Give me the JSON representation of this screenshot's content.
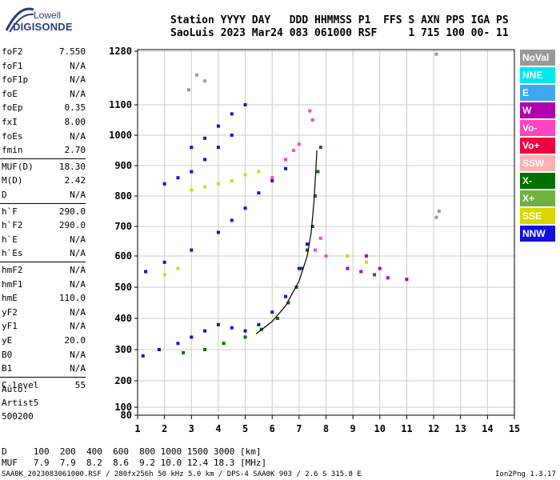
{
  "logo": {
    "line1": "Lowell",
    "line2": "DIGISONDE"
  },
  "header": {
    "line1": "Station YYYY DAY   DDD HHMMSS P1  FFS S AXN PPS IGA PS",
    "line2": "SaoLuis 2023 Mar24 083 061000 RSF     1 715 100 00- 11"
  },
  "params": [
    {
      "name": "foF2",
      "value": "7.550"
    },
    {
      "name": "foF1",
      "value": "N/A"
    },
    {
      "name": "foF1p",
      "value": "N/A"
    },
    {
      "name": "foE",
      "value": "N/A"
    },
    {
      "name": "foEp",
      "value": "0.35"
    },
    {
      "name": "fxI",
      "value": "8.00"
    },
    {
      "name": "foEs",
      "value": "N/A"
    },
    {
      "name": "fmin",
      "value": "2.70"
    },
    {
      "name": "MUF(D)",
      "value": "18.30"
    },
    {
      "name": "M(D)",
      "value": "2.42"
    },
    {
      "name": "D",
      "value": "N/A"
    },
    {
      "name": "h`F",
      "value": "290.0"
    },
    {
      "name": "h`F2",
      "value": "290.0"
    },
    {
      "name": "h`E",
      "value": "N/A"
    },
    {
      "name": "h`Es",
      "value": "N/A"
    },
    {
      "name": "hmF2",
      "value": "N/A"
    },
    {
      "name": "hmF1",
      "value": "N/A"
    },
    {
      "name": "hmE",
      "value": "110.0"
    },
    {
      "name": "yF2",
      "value": "N/A"
    },
    {
      "name": "yF1",
      "value": "N/A"
    },
    {
      "name": "yE",
      "value": "20.0"
    },
    {
      "name": "B0",
      "value": "N/A"
    },
    {
      "name": "B1",
      "value": "N/A"
    },
    {
      "name": "C-level",
      "value": "55"
    }
  ],
  "auto": {
    "line1": "Auto:",
    "line2": "Artist5",
    "line3": "500200"
  },
  "legend": [
    {
      "label": "NoVal",
      "color": "#999999"
    },
    {
      "label": "NNE",
      "color": "#00e8f0"
    },
    {
      "label": "E",
      "color": "#40a8f0"
    },
    {
      "label": "W",
      "color": "#b000b0"
    },
    {
      "label": "Vo-",
      "color": "#ff44c0"
    },
    {
      "label": "Vo+",
      "color": "#f00040"
    },
    {
      "label": "SSW",
      "color": "#ffb0b0"
    },
    {
      "label": "X-",
      "color": "#007000"
    },
    {
      "label": "X+",
      "color": "#70b040"
    },
    {
      "label": "SSE",
      "color": "#d8d800"
    },
    {
      "label": "NNW",
      "color": "#1010e0"
    }
  ],
  "footer": {
    "d_row": "D     100  200  400  600  800 1000 1500 3000 [km]",
    "muf_row": "MUF   7.9  7.9  8.2  8.6  9.2 10.0 12.4 18.3 [MHz]",
    "file_info": "SAA0K_2023083061000.RSF / 280fx256h 50 kHz 5.0 km / DPS-4 SAA0K 903 / 2.6 S 315.8 E",
    "version": "Ion2Png 1.3.17"
  },
  "chart_data": {
    "type": "scatter",
    "title": "",
    "xlabel": "",
    "ylabel": "",
    "xlim": [
      1,
      15
    ],
    "ylim": [
      80,
      1280
    ],
    "x_ticks": [
      1,
      2,
      3,
      4,
      5,
      6,
      7,
      8,
      9,
      10,
      11,
      12,
      13,
      14,
      15
    ],
    "y_ticks": [
      80,
      100,
      200,
      300,
      400,
      500,
      600,
      700,
      800,
      900,
      1000,
      1100,
      1280
    ],
    "grid": true,
    "series": [
      {
        "name": "X-",
        "points": [
          [
            2.7,
            290
          ],
          [
            3.5,
            300
          ],
          [
            4.2,
            320
          ],
          [
            5,
            340
          ],
          [
            5.6,
            365
          ],
          [
            6.2,
            400
          ],
          [
            6.6,
            450
          ],
          [
            6.9,
            500
          ],
          [
            7.1,
            560
          ],
          [
            7.3,
            620
          ],
          [
            7.5,
            700
          ],
          [
            7.6,
            800
          ],
          [
            7.7,
            880
          ],
          [
            7.8,
            960
          ]
        ]
      },
      {
        "name": "NNW",
        "points": [
          [
            1.2,
            280
          ],
          [
            1.8,
            300
          ],
          [
            2.5,
            320
          ],
          [
            3,
            340
          ],
          [
            3.5,
            360
          ],
          [
            4,
            380
          ],
          [
            4.5,
            370
          ],
          [
            5,
            360
          ],
          [
            5.5,
            380
          ],
          [
            6,
            420
          ],
          [
            6.5,
            470
          ],
          [
            7,
            560
          ],
          [
            7.3,
            640
          ],
          [
            1.3,
            550
          ],
          [
            2,
            580
          ],
          [
            3,
            620
          ],
          [
            4,
            680
          ],
          [
            4.5,
            720
          ],
          [
            5,
            760
          ],
          [
            5.5,
            810
          ],
          [
            6,
            850
          ],
          [
            6.5,
            890
          ],
          [
            2,
            840
          ],
          [
            2.5,
            860
          ],
          [
            3,
            880
          ],
          [
            3.5,
            920
          ],
          [
            4,
            960
          ],
          [
            4.5,
            1000
          ],
          [
            3,
            960
          ],
          [
            3.5,
            990
          ],
          [
            4,
            1030
          ],
          [
            4.5,
            1070
          ],
          [
            5,
            1100
          ]
        ]
      },
      {
        "name": "Vo-",
        "points": [
          [
            6,
            860
          ],
          [
            6.5,
            920
          ],
          [
            7,
            970
          ],
          [
            7.5,
            1050
          ],
          [
            7.4,
            1080
          ],
          [
            6.8,
            950
          ],
          [
            7.6,
            620
          ],
          [
            7.8,
            660
          ],
          [
            8,
            600
          ]
        ]
      },
      {
        "name": "W",
        "points": [
          [
            8.8,
            560
          ],
          [
            9.3,
            550
          ],
          [
            9.8,
            540
          ],
          [
            10.3,
            530
          ],
          [
            11,
            525
          ],
          [
            9.5,
            600
          ],
          [
            10,
            560
          ]
        ]
      },
      {
        "name": "SSE",
        "points": [
          [
            3,
            820
          ],
          [
            3.5,
            830
          ],
          [
            4,
            840
          ],
          [
            4.5,
            850
          ],
          [
            5,
            870
          ],
          [
            5.5,
            880
          ],
          [
            2,
            540
          ],
          [
            2.5,
            560
          ],
          [
            8.8,
            600
          ],
          [
            9.5,
            580
          ]
        ]
      },
      {
        "name": "NoVal",
        "points": [
          [
            2.9,
            1150
          ],
          [
            3.2,
            1200
          ],
          [
            3.5,
            1180
          ],
          [
            12.1,
            1270
          ],
          [
            12.2,
            750
          ],
          [
            12.1,
            730
          ]
        ]
      }
    ],
    "fitted_trace": [
      [
        5.4,
        350
      ],
      [
        6,
        390
      ],
      [
        6.5,
        440
      ],
      [
        7,
        520
      ],
      [
        7.3,
        600
      ],
      [
        7.45,
        680
      ],
      [
        7.55,
        780
      ],
      [
        7.62,
        880
      ],
      [
        7.66,
        950
      ]
    ]
  }
}
